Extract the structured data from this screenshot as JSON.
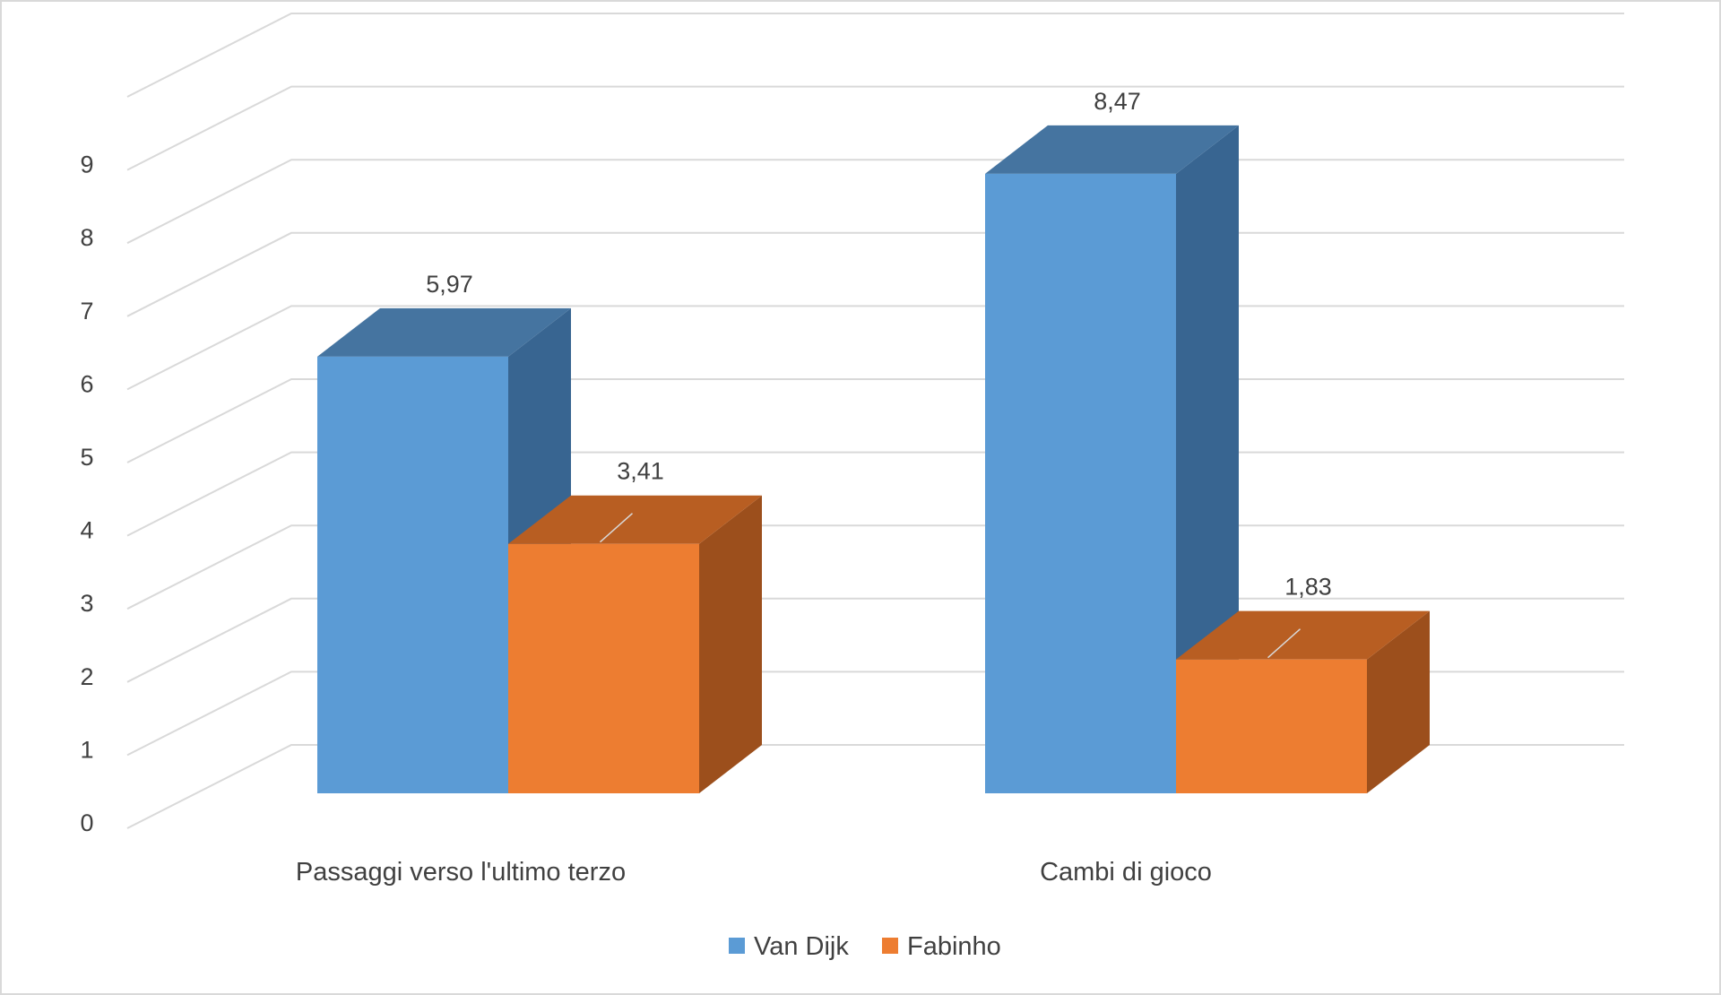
{
  "chart_data": {
    "type": "bar",
    "style": "3d-clustered-column",
    "categories": [
      "Passaggi verso l'ultimo terzo",
      "Cambi di gioco"
    ],
    "series": [
      {
        "name": "Van Dijk",
        "values": [
          5.97,
          8.47
        ],
        "data_labels": [
          "5,97",
          "8,47"
        ],
        "color": "#5b9bd5",
        "top_color": "#4574a0",
        "side_color": "#386591"
      },
      {
        "name": "Fabinho",
        "values": [
          3.41,
          1.83
        ],
        "data_labels": [
          "3,41",
          "1,83"
        ],
        "color": "#ed7d31",
        "top_color": "#b85e22",
        "side_color": "#9c4f1c"
      }
    ],
    "y_ticks": [
      "0",
      "1",
      "2",
      "3",
      "4",
      "5",
      "6",
      "7",
      "8",
      "9"
    ],
    "ylim": [
      0,
      10
    ],
    "grid": true,
    "legend_position": "bottom",
    "title": "",
    "xlabel": "",
    "ylabel": ""
  }
}
